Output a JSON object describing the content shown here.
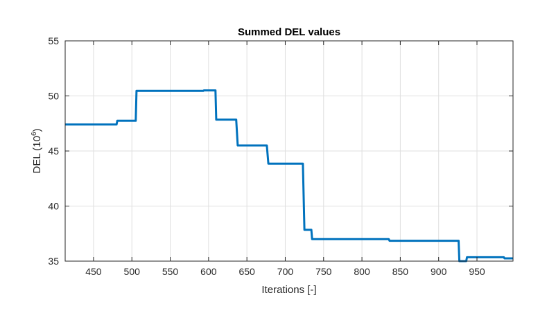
{
  "chart_data": {
    "type": "line",
    "title": "Summed DEL values",
    "xlabel": "Iterations [-]",
    "ylabel_main": "DEL (10",
    "ylabel_sup": "6",
    "ylabel_close": ")",
    "xlim": [
      413,
      997
    ],
    "ylim": [
      35,
      55
    ],
    "xticks": [
      450,
      500,
      550,
      600,
      650,
      700,
      750,
      800,
      850,
      900,
      950
    ],
    "yticks": [
      35,
      40,
      45,
      50,
      55
    ],
    "grid": true,
    "line_color": "#0072BD",
    "series": [
      {
        "step": [
          [
            413,
            47.4
          ],
          [
            480,
            47.4
          ],
          [
            481,
            47.75
          ],
          [
            505,
            47.75
          ],
          [
            506,
            50.45
          ],
          [
            593,
            50.45
          ],
          [
            594,
            50.5
          ],
          [
            609,
            50.5
          ],
          [
            610,
            47.85
          ],
          [
            636,
            47.85
          ],
          [
            638,
            45.5
          ],
          [
            676,
            45.5
          ],
          [
            678,
            43.85
          ],
          [
            723,
            43.85
          ],
          [
            725,
            37.85
          ],
          [
            734,
            37.85
          ],
          [
            735,
            37.0
          ],
          [
            835,
            37.0
          ],
          [
            836,
            36.85
          ],
          [
            926,
            36.85
          ],
          [
            927,
            35.0
          ],
          [
            936,
            35.0
          ],
          [
            937,
            35.35
          ],
          [
            985,
            35.35
          ],
          [
            986,
            35.25
          ],
          [
            997,
            35.25
          ]
        ]
      }
    ]
  }
}
